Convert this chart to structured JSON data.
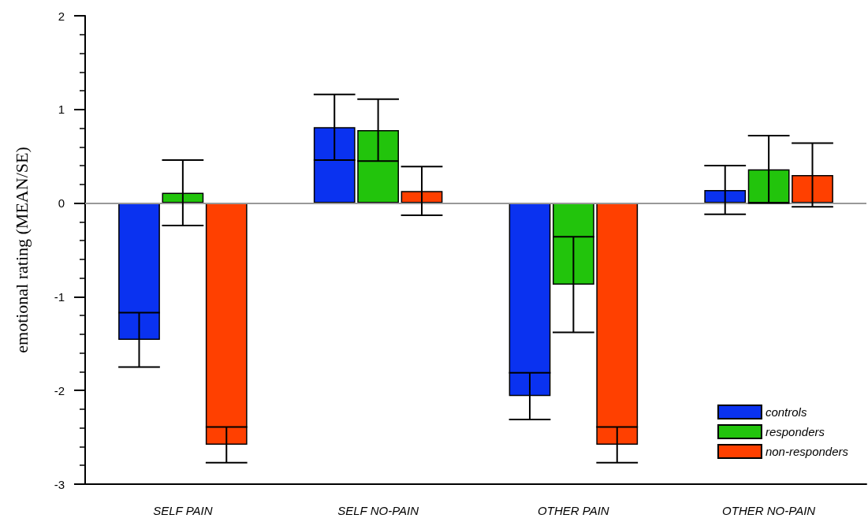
{
  "chart_data": {
    "type": "bar",
    "ylabel": "emotional rating (MEAN/SE)",
    "categories": [
      "SELF PAIN",
      "SELF NO-PAIN",
      "OTHER PAIN",
      "OTHER NO-PAIN"
    ],
    "series": [
      {
        "name": "controls",
        "color": "#0a32f0",
        "values": [
          -1.46,
          0.81,
          -2.06,
          0.14
        ],
        "errors": [
          0.29,
          0.35,
          0.25,
          0.26
        ]
      },
      {
        "name": "responders",
        "color": "#22c40c",
        "values": [
          0.11,
          0.78,
          -0.87,
          0.36
        ],
        "errors": [
          0.35,
          0.33,
          0.51,
          0.36
        ]
      },
      {
        "name": "non-responders",
        "color": "#ff4000",
        "values": [
          -2.58,
          0.13,
          -2.58,
          0.3
        ],
        "errors": [
          0.19,
          0.26,
          0.19,
          0.34
        ]
      }
    ],
    "ylim": [
      -3,
      2
    ],
    "yticks": [
      -3,
      -2,
      -1,
      0,
      1,
      2
    ],
    "ref_lines": [
      {
        "axis": "y",
        "value": 0,
        "color": "#999999"
      }
    ],
    "grid": false,
    "legend": "bottom right"
  }
}
